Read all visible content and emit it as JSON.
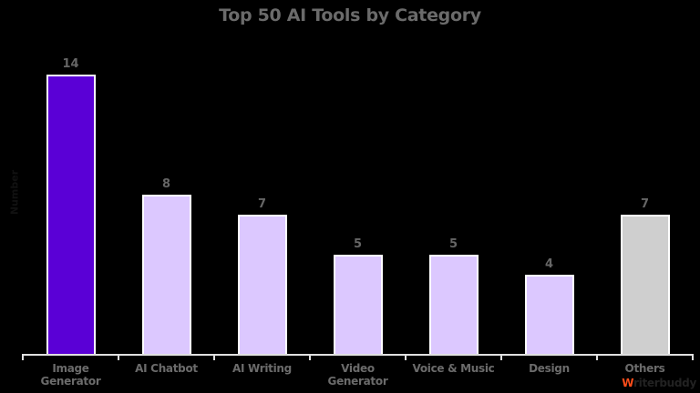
{
  "chart_data": {
    "type": "bar",
    "title": "Top 50 AI Tools by Category",
    "xlabel": "",
    "ylabel": "Number",
    "categories": [
      "Image Generator",
      "AI Chatbot",
      "AI Writing",
      "Video Generator",
      "Voice & Music",
      "Design",
      "Others"
    ],
    "category_lines": [
      [
        "Image",
        "Generator"
      ],
      [
        "AI Chatbot"
      ],
      [
        "AI Writing"
      ],
      [
        "Video",
        "Generator"
      ],
      [
        "Voice & Music"
      ],
      [
        "Design"
      ],
      [
        "Others"
      ]
    ],
    "values": [
      14,
      8,
      7,
      5,
      5,
      4,
      7
    ],
    "colors": [
      "#5a00d6",
      "#dcc8ff",
      "#dcc8ff",
      "#dcc8ff",
      "#dcc8ff",
      "#dcc8ff",
      "#cfcfcf"
    ],
    "ylim": [
      0,
      14
    ],
    "grid": false,
    "legend": null,
    "data_labels": true
  },
  "title": "Top 50 AI Tools by Category",
  "ylabel": "Number",
  "brand": {
    "first": "W",
    "rest": "riterbuddy"
  }
}
